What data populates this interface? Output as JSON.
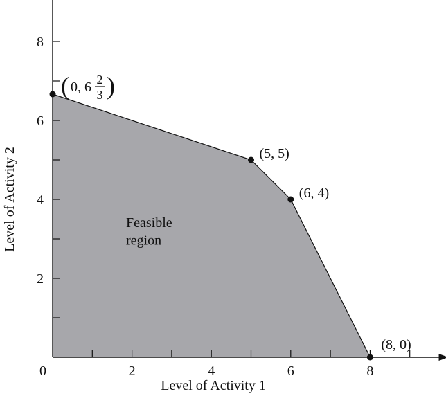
{
  "chart_data": {
    "type": "area",
    "xlabel": "Level of Activity 1",
    "ylabel": "Level of Activity 2",
    "xlim": [
      0,
      9.8
    ],
    "ylim": [
      0,
      9.4
    ],
    "x_ticks": [
      1,
      2,
      3,
      4,
      5,
      6,
      7,
      8,
      9
    ],
    "x_tick_labels": [
      "0",
      "2",
      "4",
      "6",
      "8"
    ],
    "x_tick_label_values": [
      0,
      2,
      4,
      6,
      8
    ],
    "y_ticks": [
      1,
      2,
      3,
      4,
      5,
      6,
      7,
      8
    ],
    "y_tick_labels": [
      "2",
      "4",
      "6",
      "8"
    ],
    "y_tick_label_values": [
      2,
      4,
      6,
      8
    ],
    "grid": false,
    "region": {
      "label_line1": "Feasible",
      "label_line2": "region",
      "fill_color": "#a7a7ab",
      "vertices": [
        {
          "x": 0,
          "y": 0
        },
        {
          "x": 0,
          "y": 6.6667
        },
        {
          "x": 5,
          "y": 5
        },
        {
          "x": 6,
          "y": 4
        },
        {
          "x": 8,
          "y": 0
        }
      ]
    },
    "corner_points": [
      {
        "x": 0,
        "y": 6.6667,
        "label": "(0, 6 2/3)",
        "label_prefix": "0, 6",
        "frac_num": "2",
        "frac_den": "3"
      },
      {
        "x": 5,
        "y": 5,
        "label": "(5, 5)"
      },
      {
        "x": 6,
        "y": 4,
        "label": "(6, 4)"
      },
      {
        "x": 8,
        "y": 0,
        "label": "(8, 0)"
      }
    ]
  }
}
